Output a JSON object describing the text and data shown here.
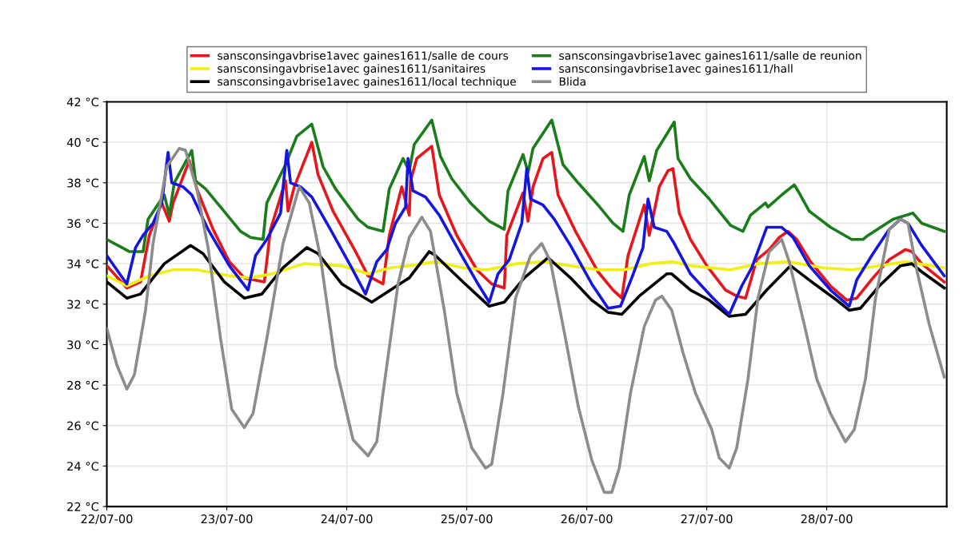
{
  "chart_data": {
    "type": "line",
    "grid": true,
    "legend": "top",
    "line_style": "solid",
    "xlim": [
      "2000-07-22T00:00",
      "2000-07-29T00:00"
    ],
    "ylim": [
      22,
      42
    ],
    "xticks": [
      {
        "value": "2000-07-22",
        "label": "22/07-00"
      },
      {
        "value": "2000-07-23",
        "label": "23/07-00"
      },
      {
        "value": "2000-07-24",
        "label": "24/07-00"
      },
      {
        "value": "2000-07-25",
        "label": "25/07-00"
      },
      {
        "value": "2000-07-26",
        "label": "26/07-00"
      },
      {
        "value": "2000-07-27",
        "label": "27/07-00"
      },
      {
        "value": "2000-07-28",
        "label": "28/07-00"
      }
    ],
    "yticks": [
      {
        "value": 22,
        "label": "22 °C"
      },
      {
        "value": 24,
        "label": "24 °C"
      },
      {
        "value": 26,
        "label": "26 °C"
      },
      {
        "value": 28,
        "label": "28 °C"
      },
      {
        "value": 30,
        "label": "30 °C"
      },
      {
        "value": 32,
        "label": "32 °C"
      },
      {
        "value": 34,
        "label": "34 °C"
      },
      {
        "value": 36,
        "label": "36 °C"
      },
      {
        "value": 38,
        "label": "38 °C"
      },
      {
        "value": 40,
        "label": "40 °C"
      },
      {
        "value": 42,
        "label": "42 °C"
      }
    ],
    "series": [
      {
        "name": "sansconsingavbrise1avec gaines1611/salle de cours",
        "color": "#e8161b",
        "x": [
          "2000-07-22T00:00",
          "2000-07-22T04:00",
          "2000-07-22T06:45",
          "2000-07-22T08:30",
          "2000-07-22T11:00",
          "2000-07-22T12:30",
          "2000-07-22T13:15",
          "2000-07-22T16:30",
          "2000-07-22T18:00",
          "2000-07-22T21:15",
          "2000-07-23T00:30",
          "2000-07-23T03:30",
          "2000-07-23T07:30",
          "2000-07-23T08:45",
          "2000-07-23T11:45",
          "2000-07-23T12:15",
          "2000-07-23T13:30",
          "2000-07-23T17:00",
          "2000-07-23T18:15",
          "2000-07-23T21:15",
          "2000-07-24T01:45",
          "2000-07-24T04:15",
          "2000-07-24T07:15",
          "2000-07-24T08:30",
          "2000-07-24T11:00",
          "2000-07-24T12:30",
          "2000-07-24T12:45",
          "2000-07-24T14:00",
          "2000-07-24T17:00",
          "2000-07-24T18:30",
          "2000-07-24T22:00",
          "2000-07-25T02:00",
          "2000-07-25T05:00",
          "2000-07-25T07:30",
          "2000-07-25T08:00",
          "2000-07-25T11:15",
          "2000-07-25T12:15",
          "2000-07-25T13:15",
          "2000-07-25T15:15",
          "2000-07-25T17:00",
          "2000-07-25T18:15",
          "2000-07-25T21:45",
          "2000-07-26T02:15",
          "2000-07-26T05:15",
          "2000-07-26T07:00",
          "2000-07-26T08:15",
          "2000-07-26T11:30",
          "2000-07-26T12:30",
          "2000-07-26T14:30",
          "2000-07-26T16:15",
          "2000-07-26T17:15",
          "2000-07-26T18:30",
          "2000-07-26T20:45",
          "2000-07-27T00:00",
          "2000-07-27T03:45",
          "2000-07-27T06:00",
          "2000-07-27T07:45",
          "2000-07-27T08:15",
          "2000-07-27T10:00",
          "2000-07-27T12:30",
          "2000-07-27T14:30",
          "2000-07-27T16:15",
          "2000-07-27T18:00",
          "2000-07-27T20:45",
          "2000-07-28T00:45",
          "2000-07-28T04:00",
          "2000-07-28T06:00",
          "2000-07-28T09:15",
          "2000-07-28T12:30",
          "2000-07-28T15:45",
          "2000-07-28T17:00",
          "2000-07-28T19:00",
          "2000-07-28T23:30"
        ],
        "values": [
          33.9,
          32.8,
          33.1,
          35.4,
          37.0,
          36.1,
          37.0,
          39.1,
          37.7,
          35.7,
          34.1,
          33.3,
          33.1,
          35.7,
          38.1,
          36.6,
          37.8,
          40.0,
          38.4,
          36.6,
          34.6,
          33.4,
          33.0,
          35.4,
          37.8,
          36.4,
          38.1,
          39.2,
          39.8,
          37.4,
          35.4,
          33.7,
          33.0,
          32.8,
          35.4,
          37.5,
          36.1,
          37.8,
          39.2,
          39.5,
          37.4,
          35.6,
          33.6,
          32.7,
          32.3,
          34.4,
          36.9,
          35.4,
          37.8,
          38.6,
          38.7,
          36.5,
          35.2,
          33.9,
          32.7,
          32.4,
          32.3,
          32.7,
          34.2,
          34.7,
          35.3,
          35.6,
          35.2,
          34.1,
          32.9,
          32.2,
          32.3,
          33.3,
          34.2,
          34.7,
          34.6,
          34.0,
          33.1
        ]
      },
      {
        "name": "sansconsingavbrise1avec gaines1611/sanitaires",
        "color": "#f0f014",
        "x": [
          "2000-07-22T00:00",
          "2000-07-22T04:00",
          "2000-07-22T08:30",
          "2000-07-22T13:15",
          "2000-07-22T18:00",
          "2000-07-23T00:30",
          "2000-07-23T04:45",
          "2000-07-23T09:00",
          "2000-07-23T15:30",
          "2000-07-23T23:00",
          "2000-07-24T04:15",
          "2000-07-24T08:45",
          "2000-07-24T12:30",
          "2000-07-24T17:45",
          "2000-07-24T23:15",
          "2000-07-25T04:00",
          "2000-07-25T10:00",
          "2000-07-25T15:15",
          "2000-07-25T20:45",
          "2000-07-26T02:15",
          "2000-07-26T07:30",
          "2000-07-26T12:45",
          "2000-07-26T17:00",
          "2000-07-26T20:45",
          "2000-07-27T04:45",
          "2000-07-27T10:15",
          "2000-07-27T16:15",
          "2000-07-27T23:15",
          "2000-07-28T05:00",
          "2000-07-28T10:30",
          "2000-07-28T15:45",
          "2000-07-28T23:30"
        ],
        "values": [
          33.4,
          32.9,
          33.4,
          33.7,
          33.7,
          33.4,
          33.3,
          33.5,
          34.0,
          33.9,
          33.5,
          33.8,
          33.9,
          34.1,
          33.8,
          33.7,
          34.0,
          34.1,
          33.9,
          33.7,
          33.7,
          34.0,
          34.1,
          33.9,
          33.7,
          34.0,
          34.1,
          33.8,
          33.7,
          33.9,
          34.1,
          33.8
        ]
      },
      {
        "name": "sansconsingavbrise1avec gaines1611/local technique",
        "color": "#000000",
        "x": [
          "2000-07-22T00:00",
          "2000-07-22T04:00",
          "2000-07-22T06:45",
          "2000-07-22T11:30",
          "2000-07-22T16:45",
          "2000-07-22T19:15",
          "2000-07-22T23:30",
          "2000-07-23T03:30",
          "2000-07-23T07:00",
          "2000-07-23T11:15",
          "2000-07-23T16:00",
          "2000-07-23T18:15",
          "2000-07-23T23:00",
          "2000-07-24T05:00",
          "2000-07-24T08:45",
          "2000-07-24T12:30",
          "2000-07-24T16:30",
          "2000-07-24T17:45",
          "2000-07-24T23:15",
          "2000-07-25T04:30",
          "2000-07-25T07:30",
          "2000-07-25T11:30",
          "2000-07-25T16:15",
          "2000-07-25T20:45",
          "2000-07-26T01:00",
          "2000-07-26T04:15",
          "2000-07-26T07:00",
          "2000-07-26T10:30",
          "2000-07-26T16:00",
          "2000-07-26T17:00",
          "2000-07-26T20:45",
          "2000-07-27T00:30",
          "2000-07-27T04:30",
          "2000-07-27T07:45",
          "2000-07-27T12:00",
          "2000-07-27T16:45",
          "2000-07-27T21:00",
          "2000-07-28T02:00",
          "2000-07-28T04:30",
          "2000-07-28T06:45",
          "2000-07-28T10:30",
          "2000-07-28T14:45",
          "2000-07-28T17:00",
          "2000-07-28T19:00",
          "2000-07-28T23:30"
        ],
        "values": [
          33.1,
          32.3,
          32.5,
          34.0,
          34.9,
          34.5,
          33.1,
          32.3,
          32.5,
          33.8,
          34.8,
          34.5,
          33.0,
          32.1,
          32.7,
          33.3,
          34.6,
          34.4,
          33.1,
          31.9,
          32.1,
          33.3,
          34.3,
          33.3,
          32.2,
          31.6,
          31.5,
          32.4,
          33.5,
          33.5,
          32.7,
          32.2,
          31.4,
          31.5,
          32.7,
          33.9,
          33.1,
          32.2,
          31.7,
          31.8,
          32.9,
          33.9,
          34.0,
          33.6,
          32.8
        ]
      },
      {
        "name": "sansconsingavbrise1avec gaines1611/salle de reunion",
        "color": "#1a7d1a",
        "x": [
          "2000-07-22T00:00",
          "2000-07-22T04:30",
          "2000-07-22T07:15",
          "2000-07-22T08:15",
          "2000-07-22T11:30",
          "2000-07-22T12:30",
          "2000-07-22T13:30",
          "2000-07-22T17:00",
          "2000-07-22T17:45",
          "2000-07-22T19:45",
          "2000-07-22T22:45",
          "2000-07-23T02:45",
          "2000-07-23T04:45",
          "2000-07-23T07:15",
          "2000-07-23T08:00",
          "2000-07-23T11:45",
          "2000-07-23T14:00",
          "2000-07-23T17:00",
          "2000-07-23T19:15",
          "2000-07-23T21:45",
          "2000-07-24T02:15",
          "2000-07-24T04:15",
          "2000-07-24T07:15",
          "2000-07-24T08:30",
          "2000-07-24T11:15",
          "2000-07-24T12:30",
          "2000-07-24T13:30",
          "2000-07-24T17:00",
          "2000-07-24T18:45",
          "2000-07-24T21:00",
          "2000-07-25T00:45",
          "2000-07-25T04:30",
          "2000-07-25T07:30",
          "2000-07-25T08:15",
          "2000-07-25T11:15",
          "2000-07-25T12:15",
          "2000-07-25T13:15",
          "2000-07-25T17:00",
          "2000-07-25T19:15",
          "2000-07-25T22:15",
          "2000-07-26T02:15",
          "2000-07-26T05:15",
          "2000-07-26T07:15",
          "2000-07-26T08:30",
          "2000-07-26T11:30",
          "2000-07-26T12:30",
          "2000-07-26T14:00",
          "2000-07-26T17:30",
          "2000-07-26T18:15",
          "2000-07-26T20:45",
          "2000-07-27T00:30",
          "2000-07-27T04:45",
          "2000-07-27T07:15",
          "2000-07-27T08:45",
          "2000-07-27T11:45",
          "2000-07-27T12:15",
          "2000-07-27T15:00",
          "2000-07-27T17:30",
          "2000-07-27T18:15",
          "2000-07-27T20:30",
          "2000-07-28T00:45",
          "2000-07-28T05:00",
          "2000-07-28T07:15",
          "2000-07-28T08:15",
          "2000-07-28T13:15",
          "2000-07-28T17:15",
          "2000-07-28T19:00",
          "2000-07-28T23:30"
        ],
        "values": [
          35.2,
          34.6,
          34.6,
          36.2,
          37.4,
          36.4,
          38.0,
          39.6,
          38.1,
          37.7,
          36.8,
          35.6,
          35.3,
          35.2,
          37.0,
          38.9,
          40.3,
          40.9,
          38.8,
          37.7,
          36.2,
          35.8,
          35.6,
          37.7,
          39.2,
          38.6,
          39.9,
          41.1,
          39.3,
          38.2,
          37.0,
          36.1,
          35.7,
          37.6,
          39.4,
          38.5,
          39.7,
          41.1,
          38.9,
          38.0,
          36.9,
          36.0,
          35.6,
          37.4,
          39.3,
          38.1,
          39.6,
          41.0,
          39.2,
          38.2,
          37.2,
          35.9,
          35.6,
          36.4,
          37.0,
          36.8,
          37.4,
          37.9,
          37.6,
          36.6,
          35.8,
          35.2,
          35.2,
          35.4,
          36.2,
          36.5,
          36.0,
          35.6
        ]
      },
      {
        "name": "sansconsingavbrise1avec gaines1611/hall",
        "color": "#1515e0",
        "x": [
          "2000-07-22T00:00",
          "2000-07-22T04:00",
          "2000-07-22T05:45",
          "2000-07-22T07:15",
          "2000-07-22T09:15",
          "2000-07-22T11:00",
          "2000-07-22T12:15",
          "2000-07-22T13:00",
          "2000-07-22T15:15",
          "2000-07-22T17:00",
          "2000-07-22T20:15",
          "2000-07-23T00:30",
          "2000-07-23T04:15",
          "2000-07-23T05:45",
          "2000-07-23T08:00",
          "2000-07-23T10:45",
          "2000-07-23T12:00",
          "2000-07-23T12:45",
          "2000-07-23T14:45",
          "2000-07-23T17:00",
          "2000-07-23T20:30",
          "2000-07-24T00:45",
          "2000-07-24T03:45",
          "2000-07-24T06:00",
          "2000-07-24T08:00",
          "2000-07-24T09:45",
          "2000-07-24T11:45",
          "2000-07-24T12:15",
          "2000-07-24T13:15",
          "2000-07-24T15:45",
          "2000-07-24T18:30",
          "2000-07-24T22:45",
          "2000-07-25T02:00",
          "2000-07-25T04:30",
          "2000-07-25T06:15",
          "2000-07-25T08:30",
          "2000-07-25T11:00",
          "2000-07-25T12:00",
          "2000-07-25T12:45",
          "2000-07-25T15:15",
          "2000-07-25T17:30",
          "2000-07-25T20:45",
          "2000-07-26T01:00",
          "2000-07-26T04:15",
          "2000-07-26T06:45",
          "2000-07-26T09:00",
          "2000-07-26T11:15",
          "2000-07-26T12:15",
          "2000-07-26T13:30",
          "2000-07-26T16:00",
          "2000-07-26T17:30",
          "2000-07-26T20:45",
          "2000-07-27T01:15",
          "2000-07-27T04:30",
          "2000-07-27T07:00",
          "2000-07-27T09:00",
          "2000-07-27T12:00",
          "2000-07-27T15:00",
          "2000-07-27T17:15",
          "2000-07-27T20:30",
          "2000-07-28T00:45",
          "2000-07-28T04:30",
          "2000-07-28T06:00",
          "2000-07-28T09:15",
          "2000-07-28T12:30",
          "2000-07-28T14:45",
          "2000-07-28T16:15",
          "2000-07-28T19:00",
          "2000-07-28T23:30"
        ],
        "values": [
          34.4,
          33.0,
          34.8,
          35.4,
          36.0,
          37.0,
          39.5,
          38.0,
          37.8,
          37.4,
          35.7,
          33.9,
          32.7,
          34.4,
          35.2,
          36.5,
          39.6,
          38.0,
          37.8,
          37.3,
          35.8,
          33.9,
          32.5,
          34.1,
          34.7,
          36.0,
          36.8,
          39.2,
          37.6,
          37.3,
          36.4,
          34.5,
          33.1,
          32.1,
          33.5,
          34.2,
          36.0,
          38.7,
          37.2,
          36.9,
          36.2,
          34.9,
          33.0,
          31.8,
          31.9,
          33.3,
          34.8,
          37.2,
          35.8,
          35.6,
          35.0,
          33.5,
          32.3,
          31.5,
          32.9,
          33.8,
          35.8,
          35.8,
          35.3,
          33.9,
          32.7,
          31.9,
          33.2,
          34.5,
          35.7,
          36.2,
          36.0,
          34.9,
          33.4
        ]
      },
      {
        "name": "Blida",
        "color": "#8c8c8c",
        "x": [
          "2000-07-22T00:00",
          "2000-07-22T02:00",
          "2000-07-22T04:00",
          "2000-07-22T05:30",
          "2000-07-22T07:45",
          "2000-07-22T09:15",
          "2000-07-22T12:00",
          "2000-07-22T14:30",
          "2000-07-22T15:45",
          "2000-07-22T18:00",
          "2000-07-22T20:15",
          "2000-07-22T22:45",
          "2000-07-23T01:00",
          "2000-07-23T03:30",
          "2000-07-23T05:15",
          "2000-07-23T08:00",
          "2000-07-23T11:15",
          "2000-07-23T14:30",
          "2000-07-23T16:30",
          "2000-07-23T18:45",
          "2000-07-23T21:45",
          "2000-07-24T01:15",
          "2000-07-24T04:15",
          "2000-07-24T06:00",
          "2000-07-24T07:15",
          "2000-07-24T10:15",
          "2000-07-24T12:30",
          "2000-07-24T15:00",
          "2000-07-24T16:45",
          "2000-07-24T19:30",
          "2000-07-24T22:00",
          "2000-07-25T01:00",
          "2000-07-25T03:45",
          "2000-07-25T05:00",
          "2000-07-25T07:15",
          "2000-07-25T09:45",
          "2000-07-25T12:45",
          "2000-07-25T15:00",
          "2000-07-25T16:45",
          "2000-07-25T19:45",
          "2000-07-25T22:15",
          "2000-07-26T01:00",
          "2000-07-26T03:30",
          "2000-07-26T05:00",
          "2000-07-26T06:30",
          "2000-07-26T08:45",
          "2000-07-26T11:30",
          "2000-07-26T13:45",
          "2000-07-26T15:00",
          "2000-07-26T17:00",
          "2000-07-26T19:15",
          "2000-07-26T21:45",
          "2000-07-27T01:00",
          "2000-07-27T02:30",
          "2000-07-27T04:30",
          "2000-07-27T06:00",
          "2000-07-27T08:15",
          "2000-07-27T10:15",
          "2000-07-27T12:30",
          "2000-07-27T15:00",
          "2000-07-27T16:30",
          "2000-07-27T19:30",
          "2000-07-27T22:00",
          "2000-07-28T00:45",
          "2000-07-28T03:45",
          "2000-07-28T05:30",
          "2000-07-28T07:45",
          "2000-07-28T09:45",
          "2000-07-28T12:30",
          "2000-07-28T14:45",
          "2000-07-28T16:15",
          "2000-07-28T18:00",
          "2000-07-28T20:30",
          "2000-07-28T23:30"
        ],
        "values": [
          30.8,
          29.0,
          27.8,
          28.5,
          31.7,
          35.0,
          38.8,
          39.7,
          39.6,
          37.7,
          34.8,
          30.3,
          26.8,
          25.9,
          26.6,
          30.3,
          35.0,
          37.8,
          37.0,
          34.3,
          29.0,
          25.3,
          24.5,
          25.2,
          27.6,
          33.0,
          35.3,
          36.3,
          35.6,
          31.7,
          27.6,
          24.9,
          23.9,
          24.1,
          27.6,
          32.3,
          34.4,
          35.0,
          34.1,
          30.3,
          27.0,
          24.3,
          22.7,
          22.7,
          23.9,
          27.6,
          30.9,
          32.2,
          32.4,
          31.7,
          29.6,
          27.6,
          25.8,
          24.4,
          23.9,
          24.9,
          28.3,
          32.3,
          34.6,
          35.2,
          34.1,
          31.0,
          28.3,
          26.6,
          25.2,
          25.8,
          28.3,
          32.3,
          35.7,
          36.2,
          36.0,
          33.7,
          31.0,
          28.4
        ]
      }
    ]
  }
}
